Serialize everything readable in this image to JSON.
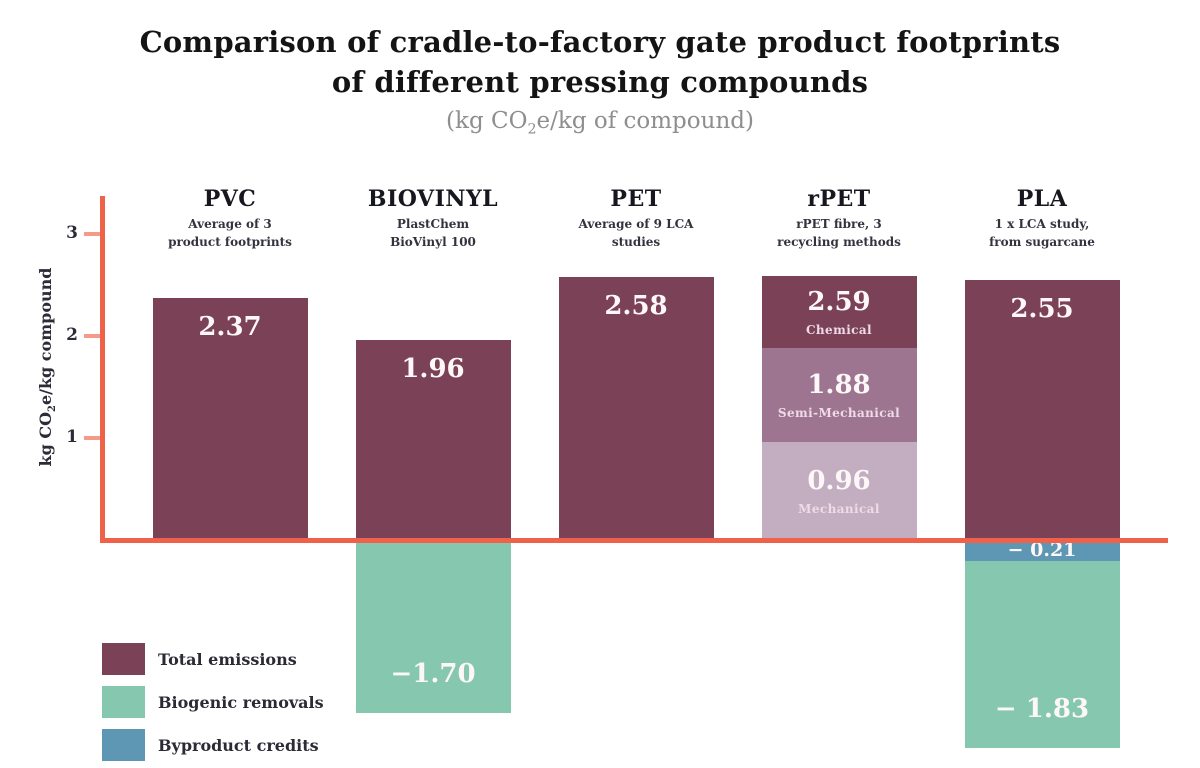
{
  "title": {
    "line1": "Comparison of cradle-to-factory gate product footprints",
    "line2": "of different pressing compounds",
    "subtitle": {
      "pre": "(kg CO",
      "sub": "2",
      "post": "e/kg of compound)"
    }
  },
  "axis": {
    "ylabel": {
      "pre": "kg CO",
      "sub": "2",
      "post": "e/kg compound"
    },
    "ticks": [
      3,
      2,
      1
    ]
  },
  "palette": {
    "emissions": "#7b4156",
    "semi_mechanical": "#9e7590",
    "mechanical": "#c3aec1",
    "biogenic": "#85c7af",
    "byproduct": "#5e97b4",
    "axis": "#f0614a",
    "tick": "#f59a86"
  },
  "legend": {
    "items": [
      {
        "label": "Total emissions",
        "color_key": "emissions"
      },
      {
        "label": "Biogenic removals",
        "color_key": "biogenic"
      },
      {
        "label": "Byproduct credits",
        "color_key": "byproduct"
      }
    ]
  },
  "chart_data": {
    "type": "bar",
    "title": "Comparison of cradle-to-factory gate product footprints of different pressing compounds",
    "unit": "kg CO2e/kg of compound",
    "ylabel": "kg CO2e/kg compound",
    "yticks": [
      1,
      2,
      3
    ],
    "ylim": [
      -2.1,
      3.2
    ],
    "grid": false,
    "legend_position": "bottom-left",
    "bars": [
      {
        "name": "PVC",
        "note_lines": [
          "Average of 3",
          "product footprints"
        ],
        "total_emissions": 2.37,
        "segments": [
          {
            "label": "2.37",
            "value": 2.37,
            "from": 0,
            "to": 2.37,
            "color_key": "emissions",
            "label_pos": "top"
          }
        ]
      },
      {
        "name": "BIOVINYL",
        "note_lines": [
          "PlastChem",
          "BioVinyl 100"
        ],
        "total_emissions": 1.96,
        "biogenic_removals": -1.7,
        "segments": [
          {
            "label": "1.96",
            "value": 1.96,
            "from": 0,
            "to": 1.96,
            "color_key": "emissions",
            "label_pos": "top"
          },
          {
            "label": "−1.70",
            "value": -1.7,
            "from": -1.7,
            "to": 0,
            "color_key": "biogenic",
            "label_pos": "bottom"
          }
        ]
      },
      {
        "name": "PET",
        "note_lines": [
          "Average of 9 LCA",
          "studies"
        ],
        "total_emissions": 2.58,
        "segments": [
          {
            "label": "2.58",
            "value": 2.58,
            "from": 0,
            "to": 2.58,
            "color_key": "emissions",
            "label_pos": "top"
          }
        ]
      },
      {
        "name": "rPET",
        "note_lines": [
          "rPET fibre, 3",
          "recycling methods"
        ],
        "methods": {
          "chemical": 2.59,
          "semi_mechanical": 1.88,
          "mechanical": 0.96
        },
        "segments": [
          {
            "label": "2.59",
            "sublabel": "Chemical",
            "value": 2.59,
            "from": 1.88,
            "to": 2.59,
            "color_key": "emissions",
            "label_pos": "center"
          },
          {
            "label": "1.88",
            "sublabel": "Semi-Mechanical",
            "value": 1.88,
            "from": 0.96,
            "to": 1.88,
            "color_key": "semi_mechanical",
            "label_pos": "center"
          },
          {
            "label": "0.96",
            "sublabel": "Mechanical",
            "value": 0.96,
            "from": 0,
            "to": 0.96,
            "color_key": "mechanical",
            "label_pos": "center"
          }
        ]
      },
      {
        "name": "PLA",
        "note_lines": [
          "1 x LCA study,",
          "from sugarcane"
        ],
        "total_emissions": 2.55,
        "byproduct_credits": -0.21,
        "biogenic_removals": -1.83,
        "segments": [
          {
            "label": "2.55",
            "value": 2.55,
            "from": 0,
            "to": 2.55,
            "color_key": "emissions",
            "label_pos": "top"
          },
          {
            "label": "− 0.21",
            "value": -0.21,
            "from": -0.21,
            "to": 0,
            "color_key": "byproduct",
            "label_pos": "center-small"
          },
          {
            "label": "− 1.83",
            "value": -1.83,
            "from": -2.04,
            "to": -0.21,
            "color_key": "biogenic",
            "label_pos": "bottom"
          }
        ]
      }
    ]
  }
}
